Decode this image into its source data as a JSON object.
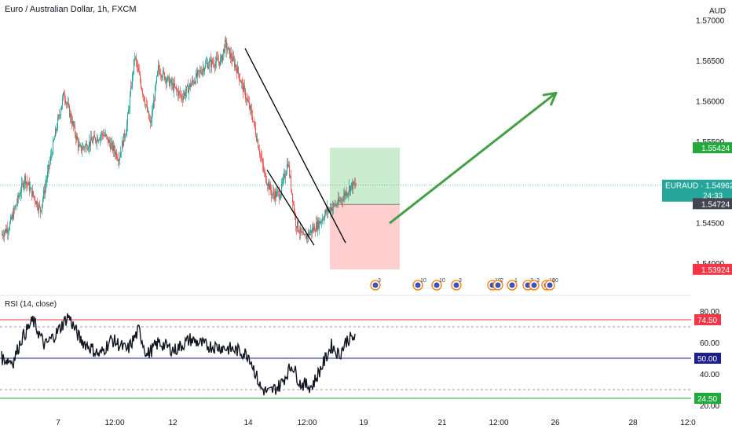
{
  "header": {
    "title": "Euro / Australian Dollar, 1h, FXCM"
  },
  "currency": "AUD",
  "colors": {
    "bull": "#26a69a",
    "bear": "#ef5350",
    "target": "#22ab3c",
    "stop": "#f23645",
    "gray": "#5d606b",
    "rsi_line": "#131722",
    "rsi_mid": "#1e1e8c",
    "zone_profit": "#b9e5be",
    "zone_loss": "#ffc6c6",
    "arrow": "#43a047"
  },
  "price_axis": {
    "min": 1.5368,
    "max": 1.5715,
    "ticks": [
      "1.54000",
      "1.54500",
      "1.55000",
      "1.55500",
      "1.56000",
      "1.56500",
      "1.57000"
    ],
    "tick_values": [
      1.54,
      1.545,
      1.55,
      1.555,
      1.56,
      1.565,
      1.57
    ],
    "tags": [
      {
        "label": "1.55424",
        "value": 1.55424,
        "type": "target"
      },
      {
        "label": "EURAUD · 1.54962",
        "sub": "24:33",
        "value": 1.54962,
        "type": "last"
      },
      {
        "label": "1.54724",
        "value": 1.54724,
        "type": "gray"
      },
      {
        "label": "1.53924",
        "value": 1.53924,
        "type": "stop"
      }
    ]
  },
  "time_axis": {
    "labels": [
      "7",
      "12:00",
      "12",
      "14",
      "12:00",
      "19",
      "21",
      "12:00",
      "26",
      "28",
      "12:0"
    ]
  },
  "position": {
    "entry": 1.54724,
    "target": 1.55424,
    "stop": 1.53924
  },
  "rsi": {
    "label": "RSI (14, close)",
    "min": 17,
    "max": 83,
    "ticks": [
      "20.00",
      "40.00",
      "60.00",
      "80.00"
    ],
    "tick_values": [
      20,
      40,
      60,
      80
    ],
    "levels": [
      {
        "label": "74.50",
        "value": 74.5,
        "type": "stop"
      },
      {
        "label": "50.00",
        "value": 50,
        "type": "mid"
      },
      {
        "label": "24.50",
        "value": 24.5,
        "type": "target"
      }
    ]
  },
  "events": [
    "3",
    "10",
    "10",
    "3",
    "10",
    "2",
    "1",
    "3",
    "3",
    "10",
    "10"
  ],
  "chart_data": {
    "type": "candlestick",
    "title": "Euro / Australian Dollar, 1h, FXCM",
    "ylim": [
      1.5368,
      1.5715
    ],
    "x_tick_labels": [
      "7",
      "12:00",
      "12",
      "14",
      "12:00",
      "19",
      "21",
      "12:00",
      "26",
      "28",
      "12:0"
    ],
    "anchors": [
      [
        0,
        1.5435
      ],
      [
        10,
        1.5445
      ],
      [
        30,
        1.5505
      ],
      [
        50,
        1.5465
      ],
      [
        70,
        1.5565
      ],
      [
        80,
        1.561
      ],
      [
        100,
        1.554
      ],
      [
        130,
        1.556
      ],
      [
        150,
        1.553
      ],
      [
        160,
        1.557
      ],
      [
        170,
        1.5655
      ],
      [
        190,
        1.557
      ],
      [
        200,
        1.564
      ],
      [
        230,
        1.5605
      ],
      [
        260,
        1.5645
      ],
      [
        280,
        1.565
      ],
      [
        285,
        1.567
      ],
      [
        300,
        1.564
      ],
      [
        320,
        1.558
      ],
      [
        335,
        1.551
      ],
      [
        345,
        1.5485
      ],
      [
        355,
        1.5485
      ],
      [
        365,
        1.5525
      ],
      [
        375,
        1.545
      ],
      [
        385,
        1.543
      ],
      [
        395,
        1.544
      ],
      [
        405,
        1.545
      ],
      [
        415,
        1.5465
      ],
      [
        430,
        1.5475
      ],
      [
        445,
        1.5495
      ],
      [
        451,
        1.5496
      ]
    ],
    "series": [
      {
        "name": "RSI (14, close)",
        "anchors": [
          [
            0,
            50
          ],
          [
            15,
            48
          ],
          [
            25,
            62
          ],
          [
            40,
            74
          ],
          [
            55,
            58
          ],
          [
            70,
            66
          ],
          [
            85,
            77
          ],
          [
            100,
            62
          ],
          [
            125,
            52
          ],
          [
            140,
            62
          ],
          [
            160,
            55
          ],
          [
            175,
            68
          ],
          [
            185,
            52
          ],
          [
            200,
            60
          ],
          [
            220,
            55
          ],
          [
            240,
            62
          ],
          [
            260,
            58
          ],
          [
            280,
            57
          ],
          [
            300,
            55
          ],
          [
            315,
            52
          ],
          [
            330,
            31
          ],
          [
            340,
            28
          ],
          [
            355,
            33
          ],
          [
            370,
            46
          ],
          [
            380,
            34
          ],
          [
            395,
            32
          ],
          [
            410,
            47
          ],
          [
            420,
            58
          ],
          [
            430,
            52
          ],
          [
            440,
            62
          ],
          [
            451,
            63
          ]
        ]
      }
    ],
    "drawings": {
      "channel": [
        [
          [
            312,
            1.5665
          ],
          [
            440,
            1.5425
          ]
        ],
        [
          [
            340,
            1.5515
          ],
          [
            400,
            1.5422
          ]
        ]
      ],
      "arrow": [
        [
          497,
          1.545
        ],
        [
          708,
          1.561
        ]
      ],
      "target_zone": [
        1.54724,
        1.55424
      ],
      "stop_zone": [
        1.53924,
        1.54724
      ]
    },
    "x_unit": "bar index (1h bars)"
  }
}
